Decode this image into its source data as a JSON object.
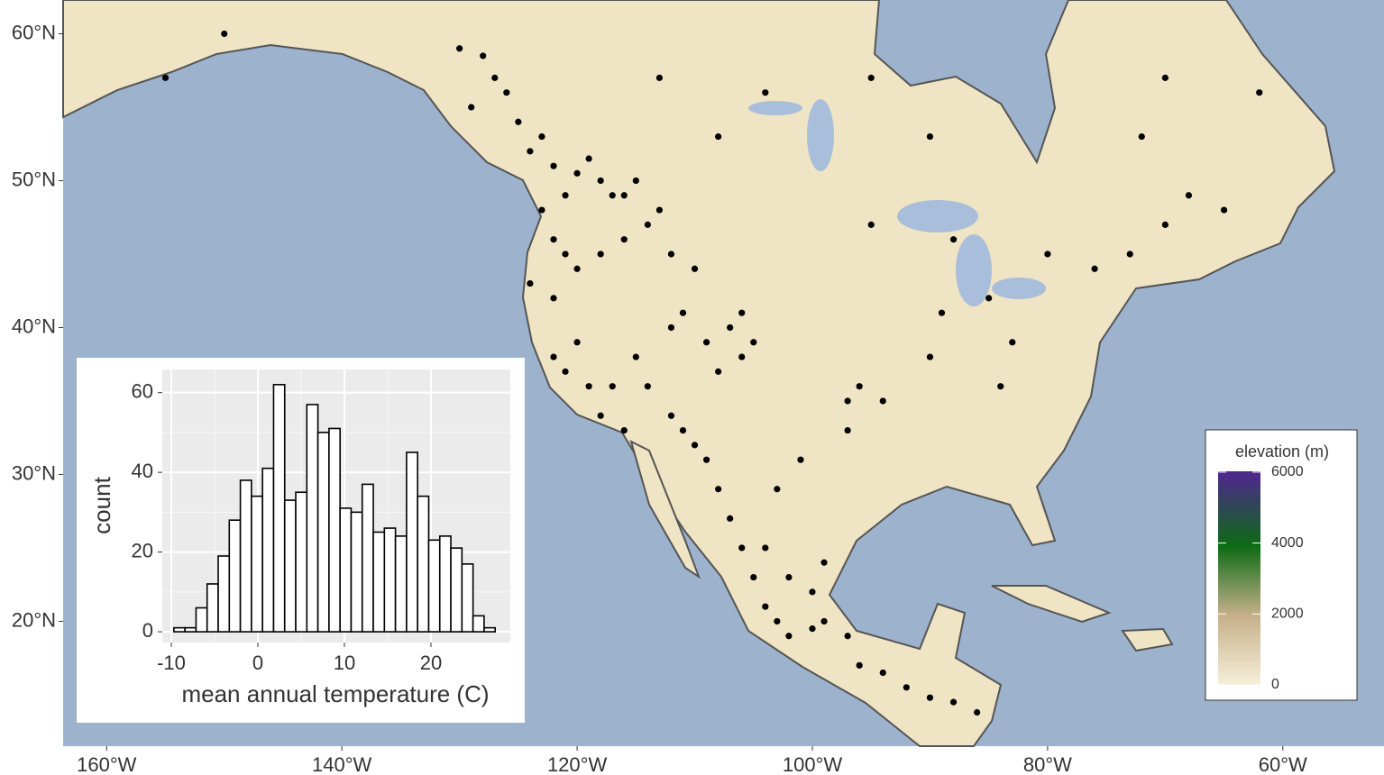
{
  "chart_data": [
    {
      "type": "map",
      "xlim": [
        -163.7,
        -51.4
      ],
      "ylim": [
        11.5,
        62.3
      ],
      "xticks": [
        {
          "value": -160,
          "label": "160°W"
        },
        {
          "value": -140,
          "label": "140°W"
        },
        {
          "value": -120,
          "label": "120°W"
        },
        {
          "value": -100,
          "label": "100°W"
        },
        {
          "value": -80,
          "label": "80°W"
        },
        {
          "value": -60,
          "label": "60°W"
        }
      ],
      "yticks": [
        {
          "value": 20,
          "label": "20°N"
        },
        {
          "value": 30,
          "label": "30°N"
        },
        {
          "value": 40,
          "label": "40°N"
        },
        {
          "value": 50,
          "label": "50°N"
        },
        {
          "value": 60,
          "label": "60°N"
        }
      ],
      "color": "#000000",
      "x": [
        -130,
        -128,
        -127,
        -126,
        -129,
        -125,
        -123,
        -124,
        -122,
        -120,
        -118,
        -117,
        -119,
        -115,
        -116,
        -121,
        -123,
        -122,
        -121,
        -124,
        -122,
        -120,
        -118,
        -116,
        -114,
        -113,
        -112,
        -110,
        -111,
        -112,
        -109,
        -107,
        -106,
        -108,
        -105,
        -106,
        -120,
        -122,
        -121,
        -119,
        -118,
        -116,
        -117,
        -115,
        -114,
        -112,
        -111,
        -110,
        -109,
        -108,
        -107,
        -106,
        -105,
        -104,
        -103,
        -102,
        -100,
        -99,
        -97,
        -96,
        -94,
        -92,
        -90,
        -88,
        -86,
        -104,
        -102,
        -100,
        -99,
        -103,
        -101,
        -97,
        -96,
        -97,
        -94,
        -90,
        -89,
        -84,
        -83,
        -80,
        -76,
        -73,
        -70,
        -68,
        -65,
        -62,
        -70,
        -72,
        -90,
        -95,
        -104,
        -113,
        -150,
        -155,
        -88,
        -85,
        -95,
        -108
      ],
      "y": [
        59,
        58.5,
        57,
        56,
        55,
        54,
        53,
        52,
        51,
        50.5,
        50,
        49,
        51.5,
        50,
        49,
        49,
        48,
        46,
        45,
        43,
        42,
        44,
        45,
        46,
        47,
        48,
        45,
        44,
        41,
        40,
        39,
        40,
        38,
        37,
        39,
        41,
        39,
        38,
        37,
        36,
        34,
        33,
        36,
        38,
        36,
        34,
        33,
        32,
        31,
        29,
        27,
        25,
        23,
        21,
        20,
        19,
        19.5,
        20,
        19,
        17,
        16.5,
        15.5,
        14.8,
        14.5,
        13.8,
        25,
        23,
        22,
        24,
        29,
        31,
        35,
        36,
        33,
        35,
        38,
        41,
        36,
        39,
        45,
        44,
        45,
        47,
        49,
        48,
        56,
        57,
        53,
        53,
        57,
        56,
        57,
        60,
        57,
        46,
        42,
        47,
        53
      ],
      "legend_title": "elevation (m)",
      "colorscale": [
        {
          "value": 0,
          "color": "#f6efd9"
        },
        {
          "value": 2000,
          "color": "#c6b08a"
        },
        {
          "value": 4000,
          "color": "#0d6b14"
        },
        {
          "value": 6000,
          "color": "#4b2a8a"
        }
      ],
      "colorscale_ticks": [
        0,
        2000,
        4000,
        6000
      ],
      "colorscale_lim": [
        0,
        6150
      ]
    },
    {
      "type": "histogram",
      "bins": [
        -9.7,
        -8.42,
        -7.14,
        -5.86,
        -4.58,
        -3.3,
        -2.02,
        -0.74,
        0.54,
        1.82,
        3.1,
        4.38,
        5.66,
        6.94,
        8.22,
        9.5,
        10.78,
        12.06,
        13.34,
        14.62,
        15.9,
        17.18,
        18.46,
        19.74,
        21.02,
        22.3,
        23.58,
        24.86,
        26.14,
        27.42
      ],
      "values": [
        1,
        1,
        6,
        12,
        19,
        28,
        38,
        34,
        41,
        62,
        33,
        35,
        57,
        50,
        51,
        31,
        30,
        37,
        25,
        26,
        24,
        45,
        34,
        23,
        24,
        21,
        17,
        4,
        1
      ],
      "color": "#ffffff",
      "edgecolor": "#000000",
      "xlim": [
        -11.04,
        29.17
      ],
      "ylim": [
        -2.7,
        65.8
      ],
      "xticks": [
        -10,
        0,
        10,
        20
      ],
      "yticks": [
        0,
        20,
        40,
        60
      ],
      "xlabel": "mean annual temperature (C)",
      "ylabel": "count"
    }
  ]
}
